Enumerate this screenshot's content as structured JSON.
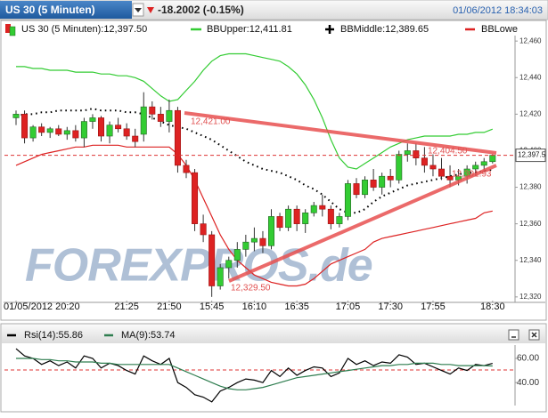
{
  "header": {
    "symbol": "US 30 (5 Minuten)",
    "change": "-18.2002 (-0.15%)",
    "timestamp": "01/06/2012 18:34:03"
  },
  "chart_data": [
    {
      "type": "candlestick",
      "name": "US 30 (5 Minuten):12,397.50",
      "up_color": "#33cc33",
      "down_color": "#dd2222",
      "categories": [
        "01/05/2012 20:20",
        null,
        null,
        null,
        null,
        null,
        null,
        null,
        null,
        null,
        null,
        null,
        null,
        "21:25",
        null,
        null,
        null,
        null,
        "21:50",
        null,
        null,
        null,
        null,
        "15:45",
        null,
        null,
        null,
        null,
        "16:10",
        null,
        null,
        null,
        null,
        "16:35",
        null,
        null,
        null,
        null,
        null,
        "17:05",
        null,
        null,
        null,
        null,
        "17:30",
        null,
        null,
        null,
        null,
        "17:55",
        null,
        null,
        null,
        null,
        null,
        null,
        "18:30"
      ],
      "open": [
        12418,
        12420,
        12407,
        12413,
        12410,
        12412,
        12409,
        12411,
        12407,
        12416,
        12418,
        12408,
        12414,
        12412,
        12408,
        12409,
        12424,
        12420,
        12416,
        12422,
        12392,
        12388,
        12360,
        12354,
        12326,
        12336,
        12340,
        12346,
        12350,
        12352,
        12348,
        12364,
        12358,
        12368,
        12360,
        12366,
        12370,
        12368,
        12360,
        12364,
        12382,
        12376,
        12384,
        12380,
        12386,
        12384,
        12398,
        12400,
        12396,
        12392,
        12390,
        12386,
        12384,
        12386,
        12390,
        12392,
        12394
      ],
      "high": [
        12422,
        12422,
        12414,
        12415,
        12413,
        12414,
        12413,
        12414,
        12418,
        12420,
        12419,
        12416,
        12418,
        12415,
        12412,
        12432,
        12427,
        12424,
        12428,
        12424,
        12395,
        12390,
        12365,
        12356,
        12338,
        12342,
        12350,
        12354,
        12358,
        12356,
        12368,
        12366,
        12370,
        12370,
        12368,
        12372,
        12376,
        12370,
        12366,
        12384,
        12385,
        12386,
        12390,
        12388,
        12390,
        12400,
        12404,
        12404,
        12402,
        12398,
        12396,
        12392,
        12390,
        12392,
        12394,
        12396,
        12398
      ],
      "low": [
        12414,
        12404,
        12405,
        12408,
        12407,
        12408,
        12406,
        12405,
        12402,
        12412,
        12405,
        12404,
        12410,
        12406,
        12402,
        12405,
        12417,
        12413,
        12410,
        12388,
        12385,
        12356,
        12350,
        12320,
        12324,
        12330,
        12336,
        12342,
        12345,
        12344,
        12346,
        12356,
        12356,
        12356,
        12355,
        12364,
        12364,
        12357,
        12358,
        12362,
        12374,
        12374,
        12378,
        12376,
        12380,
        12382,
        12394,
        12392,
        12388,
        12386,
        12384,
        12380,
        12381,
        12382,
        12386,
        12388,
        12393
      ],
      "close": [
        12420,
        12407,
        12413,
        12410,
        12412,
        12409,
        12411,
        12407,
        12416,
        12418,
        12408,
        12414,
        12412,
        12408,
        12405,
        12424,
        12420,
        12416,
        12422,
        12392,
        12388,
        12360,
        12354,
        12326,
        12336,
        12340,
        12346,
        12350,
        12352,
        12348,
        12364,
        12358,
        12368,
        12360,
        12366,
        12370,
        12368,
        12360,
        12364,
        12382,
        12376,
        12384,
        12380,
        12386,
        12384,
        12398,
        12400,
        12396,
        12392,
        12390,
        12386,
        12384,
        12386,
        12390,
        12392,
        12394,
        12397.5
      ],
      "series": [
        {
          "name": "BBUpper:12,411.81",
          "color": "#33cc33",
          "line_style": "solid",
          "values": [
            12446,
            12446,
            12445,
            12445,
            12444,
            12444,
            12444,
            12443,
            12443,
            12443,
            12442,
            12442,
            12441,
            12441,
            12440,
            12438,
            12434,
            12430,
            12427,
            12428,
            12433,
            12438,
            12444,
            12449,
            12452,
            12453,
            12453,
            12453,
            12452,
            12451,
            12450,
            12449,
            12446,
            12442,
            12436,
            12428,
            12418,
            12406,
            12396,
            12391,
            12390,
            12393,
            12396,
            12399,
            12402,
            12404,
            12406,
            12407,
            12408,
            12408,
            12408,
            12408,
            12409,
            12409,
            12410,
            12410,
            12411.81
          ]
        },
        {
          "name": "BBMiddle:12,389.65",
          "color": "#000000",
          "line_style": "dotted",
          "values": [
            12419,
            12420,
            12420,
            12421,
            12421,
            12422,
            12422,
            12422,
            12422,
            12423,
            12422,
            12422,
            12422,
            12421,
            12421,
            12420,
            12418,
            12416,
            12414,
            12413,
            12412,
            12410,
            12408,
            12406,
            12403,
            12400,
            12397,
            12394,
            12392,
            12390,
            12389,
            12388,
            12386,
            12384,
            12381,
            12379,
            12376,
            12372,
            12368,
            12366,
            12366,
            12368,
            12372,
            12375,
            12377,
            12379,
            12381,
            12382,
            12383,
            12384,
            12385,
            12386,
            12387,
            12388,
            12388,
            12389,
            12389.65
          ]
        },
        {
          "name": "BBLowe",
          "color": "#dd2222",
          "line_style": "solid",
          "values": [
            12392,
            12394,
            12396,
            12398,
            12399,
            12400,
            12401,
            12402,
            12402,
            12403,
            12403,
            12403,
            12403,
            12402,
            12402,
            12402,
            12402,
            12402,
            12402,
            12398,
            12392,
            12384,
            12374,
            12364,
            12354,
            12346,
            12340,
            12336,
            12332,
            12330,
            12328,
            12327,
            12326,
            12326,
            12327,
            12330,
            12334,
            12338,
            12340,
            12342,
            12344,
            12346,
            12350,
            12352,
            12353,
            12354,
            12355,
            12356,
            12357,
            12358,
            12359,
            12360,
            12361,
            12362,
            12363,
            12366,
            12367
          ]
        }
      ],
      "last_price": {
        "value": 12397.5,
        "label": "12,397.5"
      },
      "annotations": [
        "12,421.00",
        "12,329.50",
        "12,404.50",
        "12,391.93"
      ],
      "watermark": "FOREXPROS.de",
      "ylim": [
        12317,
        12463
      ],
      "yticks": [
        {
          "value": 12320,
          "label": "12,320"
        },
        {
          "value": 12340,
          "label": "12,340"
        },
        {
          "value": 12360,
          "label": "12,360"
        },
        {
          "value": 12380,
          "label": "12,380"
        },
        {
          "value": 12400,
          "label": "12,400"
        },
        {
          "value": 12420,
          "label": "12,420"
        },
        {
          "value": 12440,
          "label": "12,440"
        },
        {
          "value": 12460,
          "label": "12,460"
        }
      ]
    },
    {
      "type": "line",
      "series": [
        {
          "name": "Rsi(14):55.86",
          "color": "#000000",
          "values": [
            68,
            62,
            60,
            55,
            58,
            54,
            57,
            52,
            62,
            60,
            52,
            56,
            54,
            50,
            47,
            62,
            58,
            55,
            60,
            40,
            36,
            30,
            28,
            24,
            33,
            36,
            40,
            43,
            42,
            40,
            50,
            45,
            52,
            46,
            50,
            53,
            52,
            45,
            48,
            60,
            55,
            58,
            54,
            57,
            56,
            63,
            61,
            55,
            56,
            53,
            50,
            47,
            52,
            50,
            55,
            54,
            55.86
          ]
        },
        {
          "name": "MA(9):53.74",
          "color": "#2e7d4f",
          "values": [
            60,
            60,
            60,
            59,
            59,
            58,
            58,
            57,
            57,
            57,
            56,
            56,
            55,
            55,
            55,
            55,
            55,
            55,
            55,
            52,
            49,
            46,
            43,
            40,
            37,
            35,
            34,
            34,
            35,
            36,
            38,
            40,
            42,
            44,
            45,
            46,
            47,
            48,
            49,
            50,
            51,
            52,
            53,
            54,
            54,
            55,
            55,
            56,
            56,
            56,
            55,
            55,
            54,
            54,
            54,
            54,
            53.74
          ]
        }
      ],
      "ylim": [
        21,
        71
      ],
      "yticks": [
        {
          "value": 40,
          "label": "40.00"
        },
        {
          "value": 60,
          "label": "60.00"
        }
      ]
    }
  ]
}
